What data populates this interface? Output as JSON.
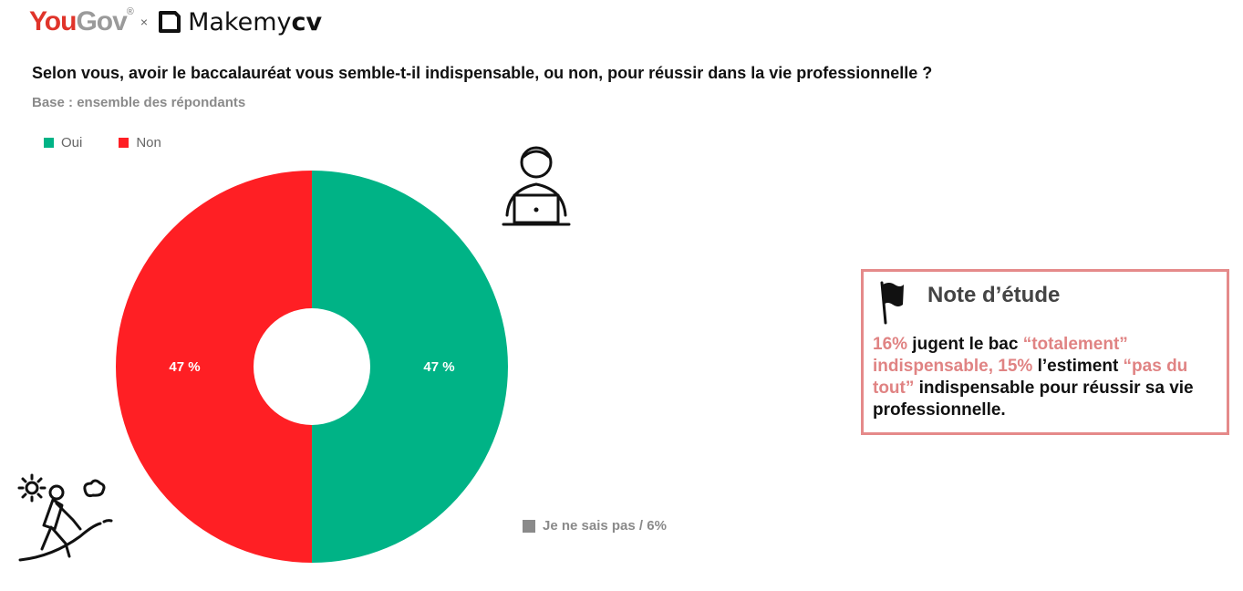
{
  "brand": {
    "yougov_you": "You",
    "yougov_gov": "Gov",
    "yougov_reg": "®",
    "separator": "×",
    "makemycv_a": "Makemy",
    "makemycv_b": "cv"
  },
  "chart_data": {
    "type": "pie",
    "variant": "donut",
    "title": "Selon vous, avoir le baccalauréat vous semble-t-il indispensable, ou non, pour réussir dans la vie professionnelle ?",
    "subtitle": "Base : ensemble des répondants",
    "legend_placement": "top-left",
    "slices": [
      {
        "name": "Oui",
        "value": 47,
        "label": "47 %",
        "color": "#00b386"
      },
      {
        "name": "Non",
        "value": 47,
        "label": "47 %",
        "color": "#ff1f24"
      }
    ],
    "excluded_note": {
      "label": "Je ne sais pas / 6%",
      "value": 6,
      "color": "#8a8a8a"
    }
  },
  "note": {
    "title": "Note d’étude",
    "p1": "16%",
    "p2": " jugent le bac ",
    "p3": "“totalement” indispensable, 15%",
    "p4": " l’estiment ",
    "p5": "“pas du tout”",
    "p6": " indispensable pour réussir sa vie professionnelle."
  },
  "icons": {
    "user": "user-laptop-icon",
    "hiker": "hiker-icon",
    "flag": "flag-icon"
  }
}
